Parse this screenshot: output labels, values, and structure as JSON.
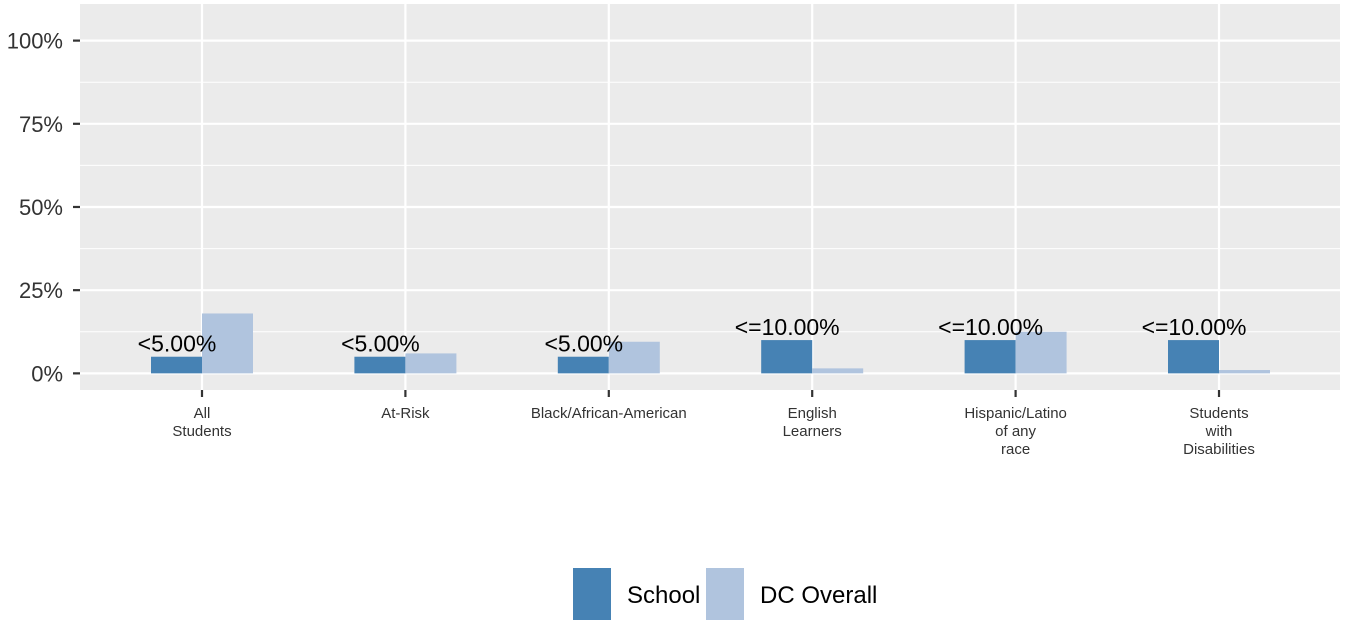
{
  "chart_data": {
    "type": "bar",
    "categories": [
      [
        "All",
        "Students"
      ],
      [
        "At-Risk"
      ],
      [
        "Black/African-American"
      ],
      [
        "English",
        "Learners"
      ],
      [
        "Hispanic/Latino",
        "of any",
        "race"
      ],
      [
        "Students",
        "with",
        "Disabilities"
      ]
    ],
    "series": [
      {
        "name": "School",
        "color": "#4682b4",
        "values": [
          5,
          5,
          5,
          10,
          10,
          10
        ]
      },
      {
        "name": "DC Overall",
        "color": "#b0c4de",
        "values": [
          18,
          6,
          9.5,
          1.5,
          12.5,
          1
        ]
      }
    ],
    "data_labels": [
      "<5.00%",
      "<5.00%",
      "<5.00%",
      "<=10.00%",
      "<=10.00%",
      "<=10.00%"
    ],
    "y_ticks": [
      0,
      25,
      50,
      75,
      100
    ],
    "y_tick_labels": [
      "0%",
      "25%",
      "50%",
      "75%",
      "100%"
    ],
    "ylim": [
      -5,
      111
    ],
    "grid": true,
    "legend_position": "bottom",
    "panel_background": "#ebebeb",
    "grid_color": "#ffffff"
  }
}
